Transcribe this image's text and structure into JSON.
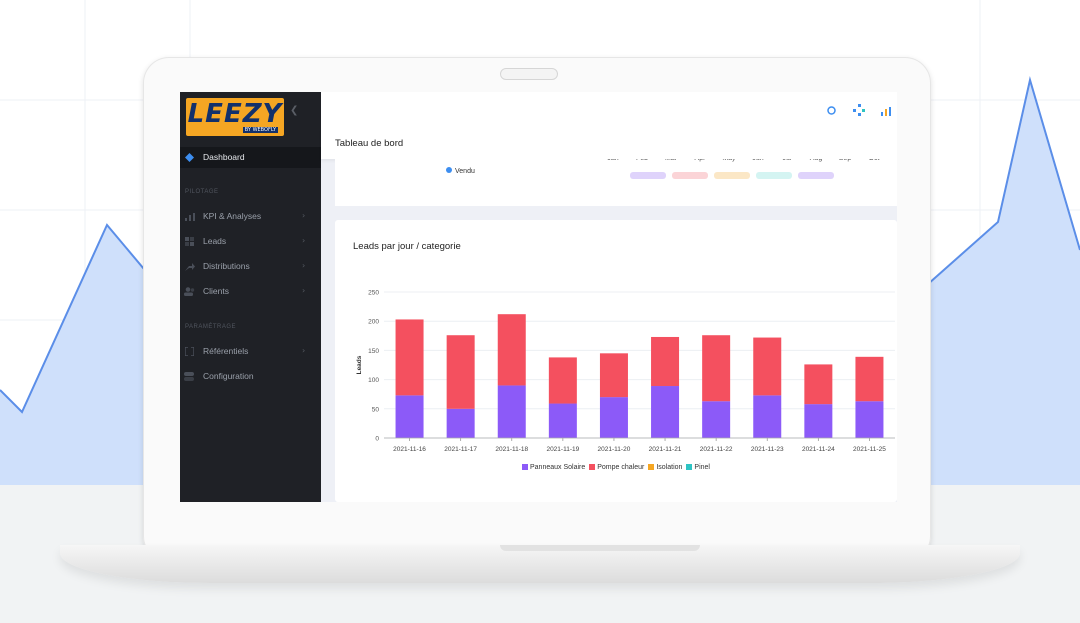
{
  "colors": {
    "sidebar_bg": "#1f2126",
    "accent_blue": "#3d8ef0",
    "panneaux": "#8c5af8",
    "pompe": "#f4505f",
    "isolation": "#f5a623",
    "pinel": "#2ec4c4"
  },
  "sidebar": {
    "logo": "LEEZY",
    "logo_sub": "BY WEBOFLY",
    "active_item": "Dashboard",
    "section_pilotage": "PILOTAGE",
    "section_parametrage": "PARAMÉTRAGE",
    "items": [
      {
        "label": "KPI & Analyses",
        "icon": "bar-chart-icon"
      },
      {
        "label": "Leads",
        "icon": "grid-icon"
      },
      {
        "label": "Distributions",
        "icon": "share-icon"
      },
      {
        "label": "Clients",
        "icon": "users-icon"
      },
      {
        "label": "Référentiels",
        "icon": "bracket-icon"
      },
      {
        "label": "Configuration",
        "icon": "toggle-icon"
      }
    ]
  },
  "topbar": {
    "icons": [
      "circle-icon",
      "diamond-icon",
      "bars-icon"
    ]
  },
  "page": {
    "title": "Tableau de bord"
  },
  "card1": {
    "months": [
      "Jan",
      "Feb",
      "Mar",
      "Apr",
      "May",
      "Jun",
      "Jul",
      "Aug",
      "Sep",
      "Oct"
    ],
    "legend": "Vendu"
  },
  "chart_data": {
    "type": "bar",
    "stacked": true,
    "title": "Leads par jour / categorie",
    "ylabel": "Leads",
    "ylim": [
      0,
      250
    ],
    "yticks": [
      0,
      50,
      100,
      150,
      200,
      250
    ],
    "categories": [
      "2021-11-16",
      "2021-11-17",
      "2021-11-18",
      "2021-11-19",
      "2021-11-20",
      "2021-11-21",
      "2021-11-22",
      "2021-11-23",
      "2021-11-24",
      "2021-11-25"
    ],
    "series": [
      {
        "name": "Panneaux Solaire",
        "color": "#8c5af8",
        "values": [
          73,
          50,
          90,
          59,
          70,
          89,
          63,
          73,
          58,
          63
        ]
      },
      {
        "name": "Pompe chaleur",
        "color": "#f4505f",
        "values": [
          130,
          126,
          122,
          79,
          75,
          84,
          113,
          99,
          68,
          76
        ]
      },
      {
        "name": "Isolation",
        "color": "#f5a623",
        "values": [
          0,
          0,
          0,
          0,
          0,
          0,
          0,
          0,
          0,
          0
        ]
      },
      {
        "name": "Pinel",
        "color": "#2ec4c4",
        "values": [
          0,
          0,
          0,
          0,
          0,
          0,
          0,
          0,
          0,
          0
        ]
      }
    ],
    "legend_position": "bottom"
  }
}
